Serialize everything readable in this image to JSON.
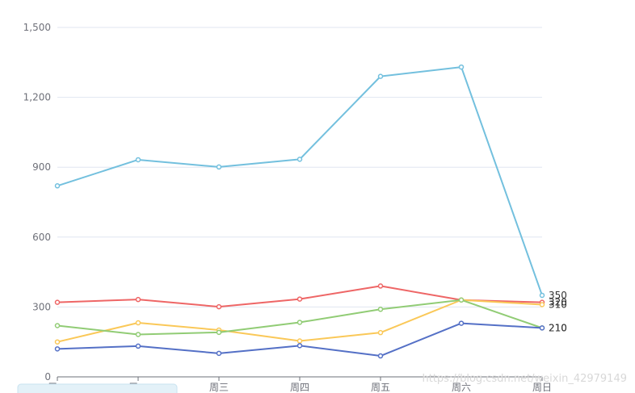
{
  "chart_data": {
    "type": "line",
    "categories": [
      "周一",
      "周二",
      "周三",
      "周四",
      "周五",
      "周六",
      "周日"
    ],
    "ylim": [
      0,
      1500
    ],
    "yticks": [
      0,
      300,
      600,
      900,
      1200,
      1500
    ],
    "ytick_labels": [
      "0",
      "300",
      "600",
      "900",
      "1,200",
      "1,500"
    ],
    "grid": true,
    "series": [
      {
        "color": "#73c0de",
        "values": [
          820,
          932,
          901,
          934,
          1290,
          1330,
          350
        ],
        "end_label": "350"
      },
      {
        "color": "#ee6666",
        "values": [
          320,
          332,
          301,
          334,
          390,
          330,
          320
        ],
        "end_label": "320"
      },
      {
        "color": "#fac858",
        "values": [
          150,
          232,
          201,
          154,
          190,
          330,
          310
        ],
        "end_label": "310"
      },
      {
        "color": "#91cc75",
        "values": [
          220,
          182,
          191,
          234,
          290,
          330,
          210
        ],
        "end_label": "210"
      },
      {
        "color": "#5470c6",
        "values": [
          120,
          132,
          101,
          134,
          90,
          230,
          210
        ],
        "end_label": "210"
      }
    ]
  },
  "watermark": "https://blog.csdn.net/weixin_42979149"
}
